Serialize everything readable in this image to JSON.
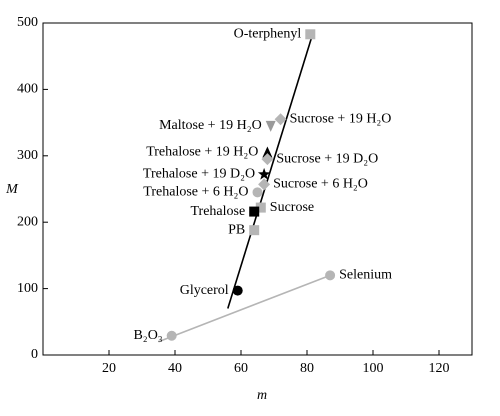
{
  "chart_data": {
    "type": "scatter",
    "xlabel": "m",
    "ylabel": "M",
    "xlim": [
      0,
      130
    ],
    "ylim": [
      0,
      500
    ],
    "xticks": [
      20,
      40,
      60,
      80,
      100,
      120
    ],
    "yticks": [
      0,
      100,
      200,
      300,
      400,
      500
    ],
    "lines": [
      {
        "x": [
          56,
          82
        ],
        "y": [
          70,
          488
        ],
        "color": "#000000"
      },
      {
        "x": [
          35,
          87
        ],
        "y": [
          20,
          120
        ],
        "color": "#b5b5b5"
      }
    ],
    "points": [
      {
        "label": "O-terphenyl",
        "x": 81,
        "y": 483,
        "marker": "square",
        "color": "#b5b5b5",
        "label_side": "left"
      },
      {
        "label": "Sucrose + 19 H₂O",
        "x": 72,
        "y": 355,
        "marker": "diamond",
        "color": "#b5b5b5",
        "label_side": "right"
      },
      {
        "label": "Maltose + 19 H₂O",
        "x": 69,
        "y": 345,
        "marker": "triangle-down",
        "color": "#9a9a9a",
        "label_side": "left"
      },
      {
        "label": "Trehalose + 19 H₂O",
        "x": 68,
        "y": 305,
        "marker": "triangle-up",
        "color": "#000000",
        "label_side": "left"
      },
      {
        "label": "Sucrose + 19 D₂O",
        "x": 68,
        "y": 295,
        "marker": "diamond",
        "color": "#b5b5b5",
        "label_side": "right"
      },
      {
        "label": "Trehalose + 19 D₂O",
        "x": 67,
        "y": 272,
        "marker": "star",
        "color": "#000000",
        "label_side": "left"
      },
      {
        "label": "Sucrose + 6 H₂O",
        "x": 67,
        "y": 257,
        "marker": "diamond",
        "color": "#b5b5b5",
        "label_side": "right"
      },
      {
        "label": "Trehalose + 6 H₂O",
        "x": 65,
        "y": 245,
        "marker": "circle",
        "color": "#b5b5b5",
        "label_side": "left"
      },
      {
        "label": "Sucrose",
        "x": 66,
        "y": 222,
        "marker": "square",
        "color": "#b5b5b5",
        "label_side": "right"
      },
      {
        "label": "Trehalose",
        "x": 64,
        "y": 216,
        "marker": "square",
        "color": "#000000",
        "label_side": "left"
      },
      {
        "label": "PB",
        "x": 64,
        "y": 188,
        "marker": "square",
        "color": "#b5b5b5",
        "label_side": "left"
      },
      {
        "label": "Glycerol",
        "x": 59,
        "y": 97,
        "marker": "circle",
        "color": "#000000",
        "label_side": "left"
      },
      {
        "label": "Selenium",
        "x": 87,
        "y": 120,
        "marker": "circle",
        "color": "#b5b5b5",
        "label_side": "right"
      },
      {
        "label": "B₂O₃",
        "x": 39,
        "y": 29,
        "marker": "circle",
        "color": "#b5b5b5",
        "label_side": "left"
      }
    ]
  }
}
